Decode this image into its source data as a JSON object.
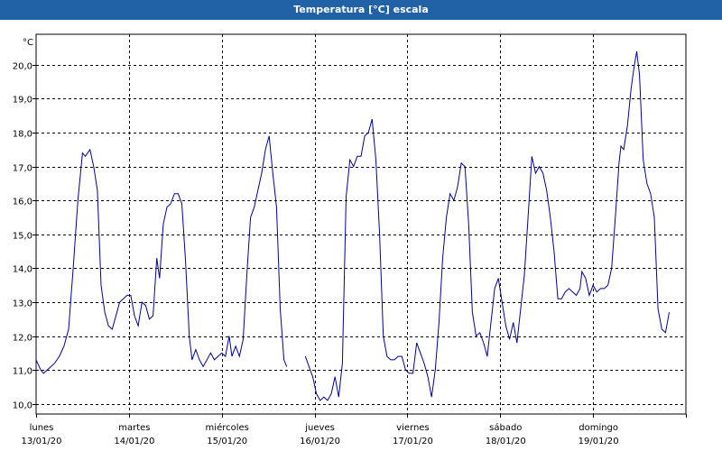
{
  "window": {
    "title": "Temperatura [°C] escala"
  },
  "chart_data": {
    "type": "line",
    "title": "Temperatura [°C] escala",
    "unit": "°C",
    "ylim": [
      9.7,
      20.9
    ],
    "yticks": [
      10.0,
      11.0,
      12.0,
      13.0,
      14.0,
      15.0,
      16.0,
      17.0,
      18.0,
      19.0,
      20.0
    ],
    "ytick_labels": [
      "10,0",
      "11,0",
      "12,0",
      "13,0",
      "14,0",
      "15,0",
      "16,0",
      "17,0",
      "18,0",
      "19,0",
      "20,0"
    ],
    "xlim": [
      0,
      7
    ],
    "day_labels": [
      {
        "day": "lunes",
        "date": "13/01/20"
      },
      {
        "day": "martes",
        "date": "14/01/20"
      },
      {
        "day": "miércoles",
        "date": "15/01/20"
      },
      {
        "day": "jueves",
        "date": "16/01/20"
      },
      {
        "day": "viernes",
        "date": "17/01/20"
      },
      {
        "day": "sábado",
        "date": "18/01/20"
      },
      {
        "day": "domingo",
        "date": "19/01/20"
      }
    ],
    "grid": true,
    "color": "#0000a0",
    "series": [
      {
        "segments": [
          [
            [
              0.0,
              11.3
            ],
            [
              0.05,
              11.0
            ],
            [
              0.08,
              10.9
            ],
            [
              0.12,
              11.0
            ],
            [
              0.16,
              11.1
            ],
            [
              0.2,
              11.2
            ],
            [
              0.25,
              11.4
            ],
            [
              0.3,
              11.7
            ],
            [
              0.35,
              12.2
            ],
            [
              0.4,
              14.0
            ],
            [
              0.45,
              16.0
            ],
            [
              0.5,
              17.4
            ],
            [
              0.53,
              17.3
            ],
            [
              0.58,
              17.5
            ],
            [
              0.62,
              17.0
            ],
            [
              0.66,
              16.3
            ],
            [
              0.7,
              13.5
            ],
            [
              0.74,
              12.7
            ],
            [
              0.78,
              12.3
            ],
            [
              0.82,
              12.2
            ],
            [
              0.86,
              12.6
            ],
            [
              0.9,
              13.0
            ],
            [
              0.94,
              13.1
            ],
            [
              0.98,
              13.2
            ],
            [
              1.02,
              13.2
            ],
            [
              1.06,
              12.6
            ],
            [
              1.1,
              12.3
            ],
            [
              1.14,
              13.0
            ],
            [
              1.18,
              12.9
            ],
            [
              1.22,
              12.5
            ],
            [
              1.26,
              12.6
            ],
            [
              1.3,
              14.3
            ],
            [
              1.33,
              13.7
            ],
            [
              1.37,
              15.3
            ],
            [
              1.41,
              15.8
            ],
            [
              1.45,
              15.9
            ],
            [
              1.49,
              16.2
            ],
            [
              1.53,
              16.2
            ],
            [
              1.57,
              15.9
            ],
            [
              1.61,
              14.2
            ],
            [
              1.65,
              12.0
            ],
            [
              1.68,
              11.3
            ],
            [
              1.72,
              11.6
            ],
            [
              1.76,
              11.3
            ],
            [
              1.8,
              11.1
            ],
            [
              1.84,
              11.3
            ],
            [
              1.88,
              11.5
            ],
            [
              1.92,
              11.3
            ],
            [
              1.96,
              11.4
            ],
            [
              2.0,
              11.5
            ],
            [
              2.04,
              11.4
            ],
            [
              2.08,
              12.0
            ],
            [
              2.11,
              11.4
            ],
            [
              2.15,
              11.7
            ],
            [
              2.19,
              11.4
            ],
            [
              2.23,
              11.9
            ],
            [
              2.27,
              13.8
            ],
            [
              2.31,
              15.5
            ],
            [
              2.35,
              15.8
            ],
            [
              2.39,
              16.3
            ],
            [
              2.43,
              16.8
            ],
            [
              2.47,
              17.5
            ],
            [
              2.51,
              17.9
            ],
            [
              2.55,
              16.8
            ],
            [
              2.59,
              15.8
            ],
            [
              2.63,
              12.8
            ],
            [
              2.67,
              11.3
            ],
            [
              2.7,
              11.1
            ]
          ],
          [
            [
              2.9,
              11.4
            ],
            [
              2.94,
              11.1
            ],
            [
              2.98,
              10.8
            ],
            [
              3.02,
              10.3
            ],
            [
              3.06,
              10.1
            ],
            [
              3.1,
              10.2
            ],
            [
              3.14,
              10.1
            ],
            [
              3.18,
              10.3
            ],
            [
              3.22,
              10.8
            ],
            [
              3.26,
              10.2
            ],
            [
              3.3,
              11.2
            ],
            [
              3.34,
              16.1
            ],
            [
              3.38,
              17.2
            ],
            [
              3.42,
              17.0
            ],
            [
              3.46,
              17.3
            ],
            [
              3.5,
              17.3
            ],
            [
              3.54,
              17.9
            ],
            [
              3.58,
              18.0
            ],
            [
              3.62,
              18.4
            ],
            [
              3.66,
              17.2
            ],
            [
              3.7,
              15.0
            ],
            [
              3.74,
              12.0
            ],
            [
              3.78,
              11.4
            ],
            [
              3.82,
              11.3
            ],
            [
              3.86,
              11.3
            ],
            [
              3.9,
              11.4
            ],
            [
              3.94,
              11.4
            ],
            [
              3.98,
              11.0
            ],
            [
              4.02,
              10.9
            ],
            [
              4.06,
              10.9
            ],
            [
              4.1,
              11.8
            ],
            [
              4.14,
              11.5
            ],
            [
              4.18,
              11.2
            ],
            [
              4.22,
              10.8
            ],
            [
              4.26,
              10.2
            ],
            [
              4.3,
              11.0
            ],
            [
              4.34,
              12.4
            ],
            [
              4.38,
              14.3
            ],
            [
              4.42,
              15.5
            ],
            [
              4.46,
              16.2
            ],
            [
              4.5,
              16.0
            ],
            [
              4.54,
              16.4
            ],
            [
              4.58,
              17.1
            ],
            [
              4.62,
              17.0
            ],
            [
              4.66,
              15.3
            ],
            [
              4.7,
              12.7
            ],
            [
              4.74,
              12.0
            ],
            [
              4.78,
              12.1
            ],
            [
              4.82,
              11.8
            ],
            [
              4.86,
              11.4
            ],
            [
              4.9,
              12.4
            ],
            [
              4.94,
              13.4
            ],
            [
              4.98,
              13.7
            ],
            [
              5.02,
              13.0
            ],
            [
              5.06,
              12.3
            ],
            [
              5.1,
              11.9
            ],
            [
              5.14,
              12.4
            ],
            [
              5.18,
              11.8
            ],
            [
              5.22,
              12.8
            ],
            [
              5.26,
              13.8
            ],
            [
              5.3,
              15.5
            ],
            [
              5.34,
              17.3
            ],
            [
              5.38,
              16.8
            ],
            [
              5.42,
              17.0
            ],
            [
              5.46,
              16.8
            ],
            [
              5.5,
              16.3
            ],
            [
              5.54,
              15.5
            ],
            [
              5.58,
              14.5
            ],
            [
              5.62,
              13.1
            ],
            [
              5.66,
              13.1
            ],
            [
              5.7,
              13.3
            ],
            [
              5.74,
              13.4
            ],
            [
              5.78,
              13.3
            ],
            [
              5.82,
              13.2
            ],
            [
              5.86,
              13.4
            ],
            [
              5.88,
              13.9
            ],
            [
              5.92,
              13.7
            ],
            [
              5.96,
              13.2
            ],
            [
              6.0,
              13.5
            ],
            [
              6.04,
              13.3
            ],
            [
              6.08,
              13.4
            ],
            [
              6.12,
              13.4
            ],
            [
              6.16,
              13.5
            ],
            [
              6.2,
              14.0
            ],
            [
              6.24,
              15.5
            ],
            [
              6.28,
              17.1
            ],
            [
              6.3,
              17.6
            ],
            [
              6.33,
              17.5
            ],
            [
              6.37,
              18.2
            ],
            [
              6.41,
              19.3
            ],
            [
              6.44,
              19.9
            ],
            [
              6.47,
              20.4
            ],
            [
              6.5,
              19.7
            ],
            [
              6.54,
              17.2
            ],
            [
              6.58,
              16.5
            ],
            [
              6.62,
              16.2
            ],
            [
              6.66,
              15.5
            ],
            [
              6.7,
              12.8
            ],
            [
              6.74,
              12.2
            ],
            [
              6.78,
              12.1
            ],
            [
              6.82,
              12.7
            ]
          ]
        ]
      }
    ]
  }
}
